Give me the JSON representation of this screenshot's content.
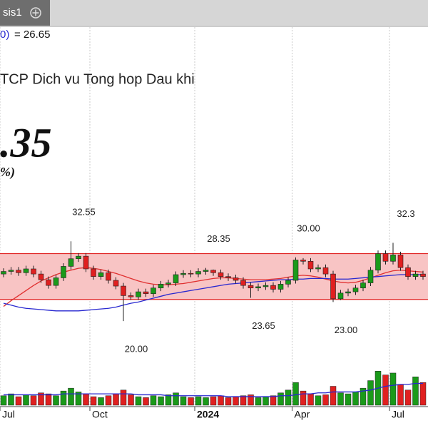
{
  "tab": {
    "label": "sis1"
  },
  "chart_data": {
    "type": "candlestick",
    "indicator_label": "0)",
    "indicator_value": "= 26.65",
    "title": "TCP Dich vu Tong hop Dau khi",
    "last_price": ".35",
    "change": "%)",
    "open": [
      27.4,
      27.8,
      28.0,
      27.6,
      28.2,
      27.4,
      26.5,
      25.6,
      26.8,
      28.6,
      29.8,
      30.2,
      28.2,
      27.0,
      27.6,
      26.4,
      25.5,
      24.0,
      23.8,
      24.6,
      24.3,
      25.2,
      25.8,
      26.0,
      27.3,
      27.5,
      27.4,
      27.8,
      28.0,
      27.6,
      27.0,
      26.8,
      26.4,
      25.6,
      25.2,
      25.4,
      25.6,
      25.0,
      25.8,
      26.4,
      29.6,
      29.4,
      28.2,
      28.4,
      27.4,
      23.5,
      24.4,
      24.6,
      25.2,
      26.0,
      28.0,
      30.6,
      29.4,
      30.4,
      28.4,
      27.0,
      27.4
    ],
    "high": [
      28.3,
      28.5,
      28.5,
      28.7,
      28.7,
      27.9,
      27.0,
      27.3,
      29.1,
      32.55,
      30.7,
      30.7,
      28.7,
      28.1,
      28.1,
      26.9,
      26.0,
      24.5,
      25.1,
      25.1,
      25.7,
      26.3,
      26.5,
      27.8,
      28.0,
      28.0,
      28.3,
      28.35,
      28.1,
      28.1,
      27.5,
      27.3,
      26.9,
      26.1,
      25.9,
      26.1,
      26.1,
      26.3,
      26.9,
      30.0,
      29.9,
      29.9,
      28.9,
      28.9,
      27.9,
      24.9,
      25.1,
      25.7,
      26.5,
      28.5,
      31.1,
      31.1,
      32.3,
      30.9,
      28.9,
      27.9,
      27.9
    ],
    "low": [
      26.9,
      27.3,
      27.1,
      27.1,
      26.9,
      26.0,
      25.1,
      25.1,
      26.3,
      28.1,
      29.3,
      27.7,
      26.5,
      26.5,
      25.9,
      25.0,
      20.0,
      23.3,
      23.3,
      23.8,
      23.8,
      24.7,
      25.3,
      25.5,
      26.8,
      26.9,
      26.9,
      27.3,
      27.1,
      26.5,
      26.3,
      25.9,
      25.1,
      23.65,
      24.7,
      24.9,
      24.5,
      24.5,
      25.3,
      25.9,
      28.9,
      27.7,
      27.7,
      26.9,
      23.0,
      23.3,
      23.9,
      24.1,
      24.7,
      25.5,
      27.5,
      28.9,
      28.9,
      27.9,
      26.5,
      26.5,
      26.5
    ],
    "close": [
      27.8,
      28.0,
      27.6,
      28.2,
      27.4,
      26.5,
      25.6,
      26.8,
      28.6,
      29.8,
      30.2,
      28.2,
      27.0,
      27.6,
      26.4,
      25.5,
      24.0,
      23.8,
      24.6,
      24.3,
      25.2,
      25.8,
      26.0,
      27.3,
      27.5,
      27.4,
      27.8,
      28.0,
      27.6,
      27.0,
      26.8,
      26.4,
      25.6,
      25.2,
      25.4,
      25.6,
      25.0,
      25.8,
      26.4,
      29.6,
      29.4,
      28.2,
      28.4,
      27.4,
      23.5,
      24.4,
      24.6,
      25.2,
      26.0,
      28.0,
      30.6,
      29.4,
      30.4,
      28.4,
      27.0,
      27.4,
      27.0
    ],
    "volume": [
      1.0,
      1.2,
      0.9,
      1.1,
      1.0,
      1.3,
      1.2,
      1.0,
      1.5,
      1.8,
      1.4,
      1.2,
      0.9,
      0.8,
      1.0,
      1.2,
      1.6,
      1.1,
      0.9,
      0.8,
      1.0,
      0.9,
      1.1,
      1.3,
      0.9,
      0.8,
      0.9,
      0.8,
      0.9,
      1.0,
      0.8,
      0.9,
      1.0,
      1.1,
      0.8,
      0.9,
      1.0,
      1.3,
      1.6,
      2.4,
      1.5,
      1.2,
      1.0,
      1.1,
      2.0,
      1.3,
      1.2,
      1.4,
      1.8,
      2.6,
      3.6,
      3.2,
      3.4,
      2.2,
      1.6,
      3.0,
      2.4
    ],
    "volume_ma": [
      1.1,
      1.1,
      1.1,
      1.1,
      1.1,
      1.1,
      1.1,
      1.1,
      1.2,
      1.2,
      1.2,
      1.2,
      1.2,
      1.2,
      1.2,
      1.2,
      1.2,
      1.2,
      1.1,
      1.1,
      1.1,
      1.1,
      1.0,
      1.0,
      1.0,
      1.0,
      1.0,
      1.0,
      1.0,
      1.0,
      0.9,
      0.9,
      0.9,
      0.9,
      0.9,
      0.9,
      0.9,
      1.0,
      1.0,
      1.1,
      1.2,
      1.2,
      1.3,
      1.3,
      1.4,
      1.4,
      1.4,
      1.4,
      1.5,
      1.6,
      1.8,
      2.0,
      2.1,
      2.2,
      2.2,
      2.3,
      2.3
    ],
    "series": [
      {
        "color": "#e03030",
        "values": [
          22.3,
          23.2,
          24.0,
          24.8,
          25.6,
          26.3,
          26.8,
          27.3,
          27.7,
          28.0,
          28.3,
          28.4,
          28.3,
          28.1,
          27.8,
          27.5,
          27.1,
          26.7,
          26.3,
          26.0,
          25.8,
          25.7,
          25.7,
          25.8,
          25.9,
          26.1,
          26.3,
          26.5,
          26.7,
          26.8,
          26.8,
          26.7,
          26.6,
          26.5,
          26.5,
          26.5,
          26.6,
          26.7,
          26.9,
          27.1,
          27.2,
          27.1,
          26.9,
          26.6,
          26.3,
          26.1,
          26.0,
          26.1,
          26.4,
          26.8,
          27.2,
          27.6,
          27.9,
          28.0,
          27.9,
          27.8,
          27.7
        ]
      },
      {
        "color": "#2828d0",
        "values": [
          22.8,
          22.5,
          22.2,
          22.0,
          21.9,
          21.8,
          21.7,
          21.6,
          21.6,
          21.6,
          21.6,
          21.7,
          21.8,
          21.9,
          22.0,
          22.2,
          22.5,
          22.8,
          23.0,
          23.3,
          23.6,
          23.9,
          24.2,
          24.4,
          24.6,
          24.8,
          25.0,
          25.2,
          25.4,
          25.6,
          25.8,
          25.9,
          26.0,
          26.1,
          26.2,
          26.3,
          26.4,
          26.5,
          26.5,
          26.6,
          26.6,
          26.7,
          26.7,
          26.7,
          26.6,
          26.6,
          26.6,
          26.7,
          26.8,
          26.9,
          27.0,
          27.1,
          27.2,
          27.3,
          27.3,
          27.3,
          27.3
        ]
      }
    ],
    "channel": {
      "upper": 30.6,
      "lower": 23.4,
      "color": "#f8c4c4",
      "edge": "#e02020"
    },
    "annotations": [
      {
        "index": 9,
        "price": 32.55,
        "position": "above"
      },
      {
        "index": 27,
        "price": 28.35,
        "position": "above"
      },
      {
        "index": 39,
        "price": {
          "value": 30,
          "label": "30.00"
        },
        "position": "above"
      },
      {
        "index": 52,
        "price": 32.3,
        "position": "above"
      },
      {
        "index": 33,
        "price": 23.65,
        "position": "below"
      },
      {
        "index": 44,
        "price": {
          "value": 23,
          "label": "23.00"
        },
        "position": "below"
      },
      {
        "index": 16,
        "price": {
          "value": 20,
          "label": "20.00"
        },
        "position": "below"
      }
    ],
    "xticks": [
      {
        "value": 0,
        "label": "Jul"
      },
      {
        "value": 12,
        "label": "Oct"
      },
      {
        "value": 26,
        "label": "2024"
      },
      {
        "value": 39,
        "label": "Apr"
      },
      {
        "value": 52,
        "label": "Jul"
      }
    ],
    "ylim": [
      14.4,
      40.2
    ],
    "volume_ylim": [
      0,
      4
    ],
    "up_color": "#1a9a1a",
    "down_color": "#e02020",
    "grid": true
  }
}
